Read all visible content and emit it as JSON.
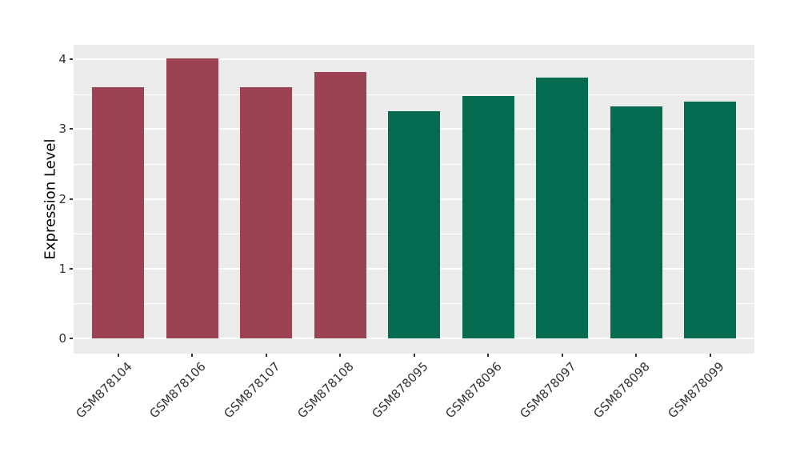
{
  "figure": {
    "background": "#FFFFFF"
  },
  "chart_data": {
    "type": "bar",
    "title": "",
    "xlabel": "",
    "ylabel": "Expression Level",
    "categories": [
      "GSM878104",
      "GSM878106",
      "GSM878107",
      "GSM878108",
      "GSM878095",
      "GSM878096",
      "GSM878097",
      "GSM878098",
      "GSM878099"
    ],
    "values": [
      3.6,
      4.01,
      3.6,
      3.82,
      3.26,
      3.47,
      3.74,
      3.33,
      3.4
    ],
    "bar_colors": [
      "#9C4353",
      "#9C4353",
      "#9C4353",
      "#9C4353",
      "#036B50",
      "#036B50",
      "#036B50",
      "#036B50",
      "#036B50"
    ],
    "groups": [
      {
        "color": "#9C4353",
        "categories": [
          "GSM878104",
          "GSM878106",
          "GSM878107",
          "GSM878108"
        ]
      },
      {
        "color": "#036B50",
        "categories": [
          "GSM878095",
          "GSM878096",
          "GSM878097",
          "GSM878098",
          "GSM878099"
        ]
      }
    ],
    "y_ticks": [
      0,
      1,
      2,
      3,
      4
    ],
    "y_tick_labels": [
      "0",
      "1",
      "2",
      "3",
      "4"
    ],
    "y_minor_ticks": [
      0.5,
      1.5,
      2.5,
      3.5
    ],
    "ylim": [
      -0.22,
      4.21
    ],
    "grid": true,
    "legend_position": "none",
    "x_label_rotation": -45,
    "panel_bg": "#EBEBEB",
    "grid_color": "#FFFFFF",
    "tick_mark_color": "#333333",
    "axis_text_color": "#333333",
    "axis_title_color": "#000000"
  }
}
